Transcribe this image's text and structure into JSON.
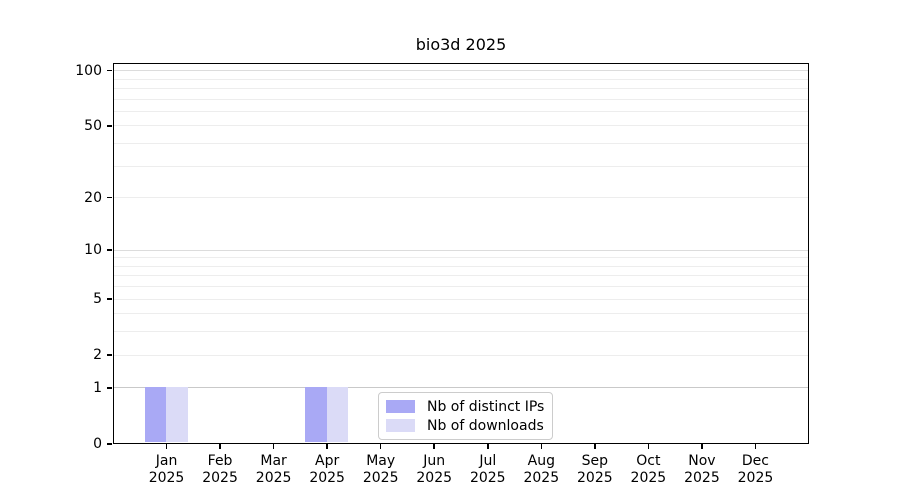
{
  "chart_data": {
    "type": "bar",
    "title": "bio3d 2025",
    "categories": [
      "Jan",
      "Feb",
      "Mar",
      "Apr",
      "May",
      "Jun",
      "Jul",
      "Aug",
      "Sep",
      "Oct",
      "Nov",
      "Dec"
    ],
    "year_label": "2025",
    "series": [
      {
        "name": "Nb of distinct IPs",
        "color": "#a9a9f5",
        "values": [
          1,
          0,
          0,
          1,
          0,
          0,
          0,
          0,
          0,
          0,
          0,
          0
        ]
      },
      {
        "name": "Nb of downloads",
        "color": "#dbdbf7",
        "values": [
          1,
          0,
          0,
          1,
          0,
          0,
          0,
          0,
          0,
          0,
          0,
          0
        ]
      }
    ],
    "yscale": "log1p",
    "ylim": [
      0,
      110
    ],
    "yticks": [
      0,
      1,
      2,
      5,
      10,
      20,
      50,
      100
    ],
    "gridlines": {
      "baseline": [
        1
      ],
      "major": [
        10,
        100
      ],
      "minor": [
        2,
        3,
        4,
        5,
        6,
        7,
        8,
        9,
        20,
        30,
        40,
        50,
        60,
        70,
        80,
        90
      ]
    },
    "legend": {
      "position": "lower center"
    }
  }
}
